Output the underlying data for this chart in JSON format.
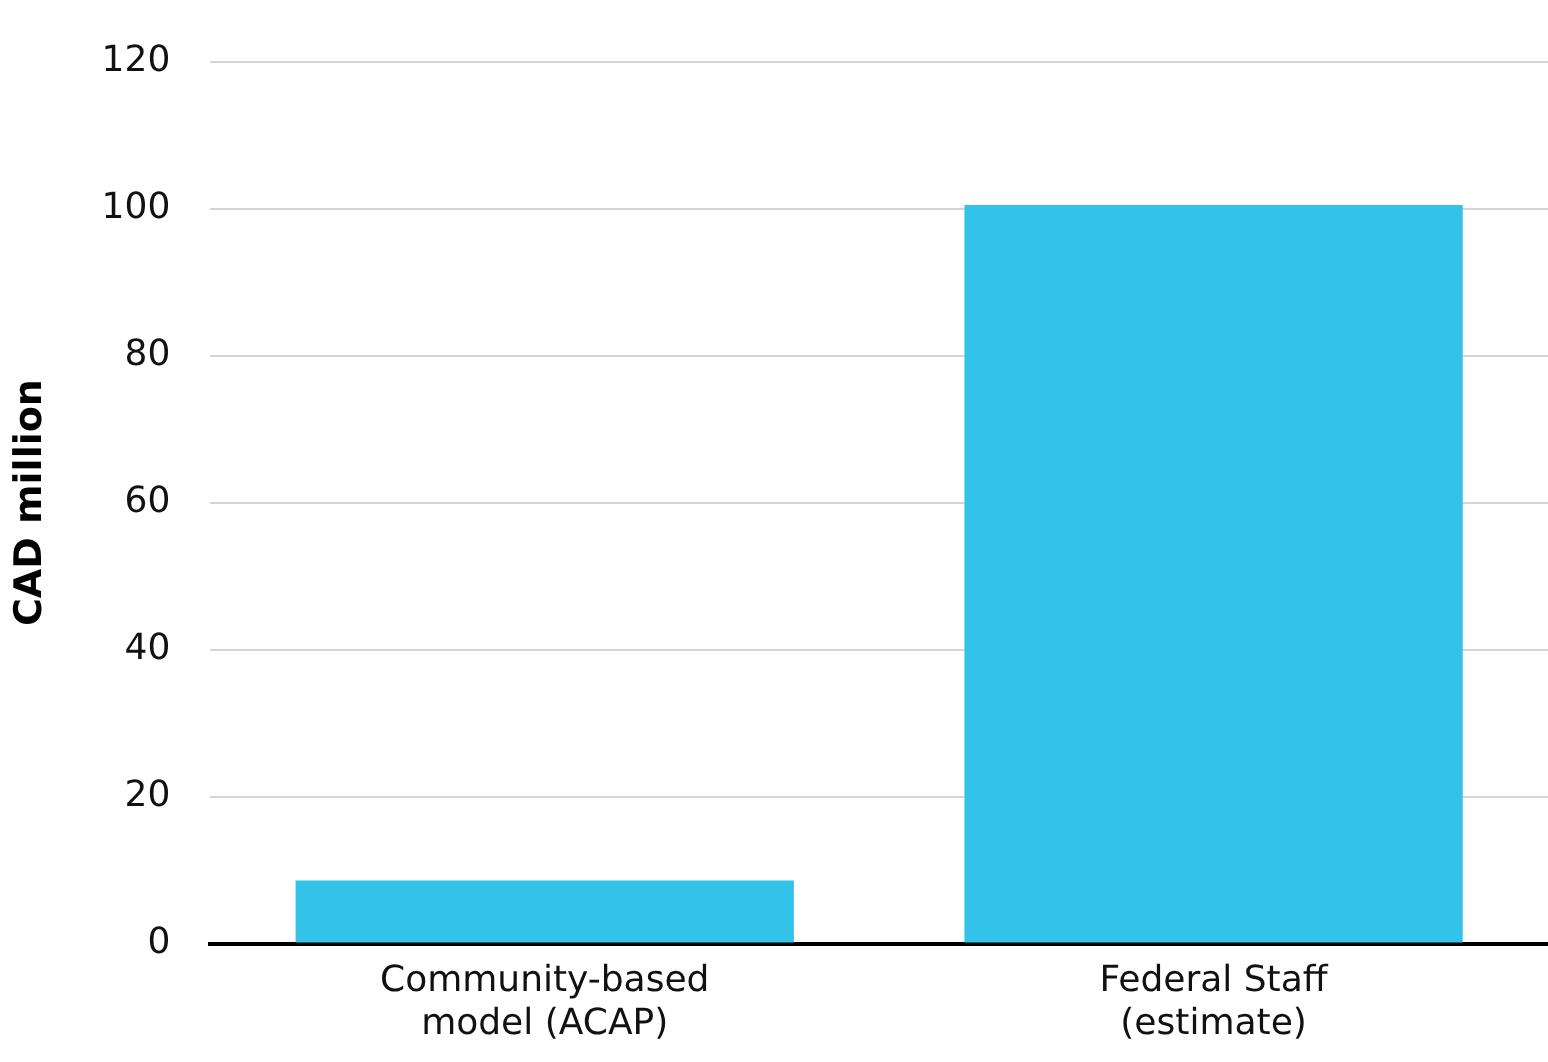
{
  "chart_data": {
    "type": "bar",
    "ylabel": "CAD million",
    "categories": [
      "Community-based model (ACAP)",
      "Federal Staff (estimate)"
    ],
    "values": [
      8.6,
      100.5
    ],
    "color": "#33c3e8",
    "ylim": [
      0,
      120
    ],
    "yticks": [
      0,
      20,
      40,
      60,
      80,
      100,
      120
    ],
    "grid": "y",
    "legend": false
  }
}
